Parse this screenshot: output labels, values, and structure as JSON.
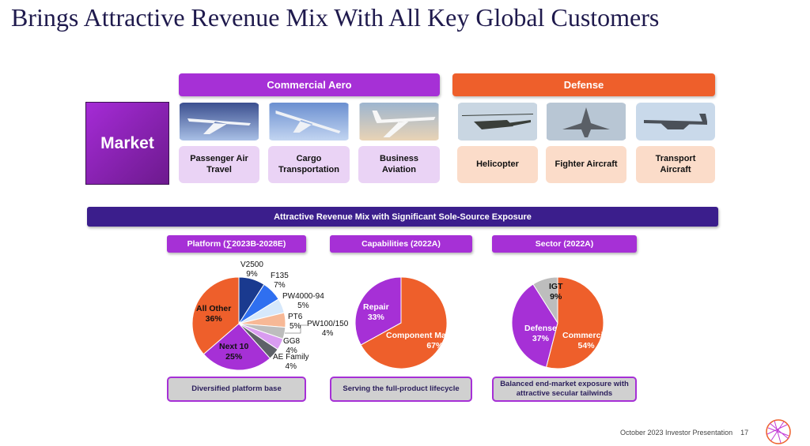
{
  "title": "Brings Attractive Revenue Mix With All Key Global Customers",
  "market_label": "Market",
  "commercial": {
    "header": "Commercial Aero",
    "color": "#a630d6",
    "items": [
      "Passenger Air Travel",
      "Cargo Transportation",
      "Business Aviation"
    ]
  },
  "defense": {
    "header": "Defense",
    "color": "#ee5f2b",
    "items": [
      "Helicopter",
      "Fighter Aircraft",
      "Transport Aircraft"
    ]
  },
  "banner": "Attractive Revenue Mix with Significant Sole-Source Exposure",
  "chart_data": [
    {
      "type": "pie",
      "title": "Platform (∑2023B-2028E)",
      "note": "Diversified platform base",
      "slices": [
        {
          "label": "V2500",
          "value": 9,
          "color": "#1a3a8f"
        },
        {
          "label": "F135",
          "value": 7,
          "color": "#2f6ff0"
        },
        {
          "label": "PW4000-94",
          "value": 5,
          "color": "#d6e8fb"
        },
        {
          "label": "PT6",
          "value": 5,
          "color": "#f7b896"
        },
        {
          "label": "PW100/150",
          "value": 4,
          "color": "#bdbdbd"
        },
        {
          "label": "GG8",
          "value": 4,
          "color": "#d99cf0"
        },
        {
          "label": "AE Family",
          "value": 4,
          "color": "#5e6168"
        },
        {
          "label": "Next 10",
          "value": 25,
          "color": "#a630d6"
        },
        {
          "label": "All Other",
          "value": 36,
          "color": "#ee5f2b"
        }
      ]
    },
    {
      "type": "pie",
      "title": "Capabilities (2022A)",
      "note": "Serving the full-product lifecycle",
      "slices": [
        {
          "label": "Component Manufacture",
          "value": 67,
          "color": "#ee5f2b"
        },
        {
          "label": "Repair",
          "value": 33,
          "color": "#a630d6"
        }
      ]
    },
    {
      "type": "pie",
      "title": "Sector (2022A)",
      "note": "Balanced end-market exposure with attractive secular tailwinds",
      "slices": [
        {
          "label": "Commercial",
          "value": 54,
          "color": "#ee5f2b"
        },
        {
          "label": "Defense",
          "value": 37,
          "color": "#a630d6"
        },
        {
          "label": "IGT",
          "value": 9,
          "color": "#bdbdbd"
        }
      ]
    }
  ],
  "footer": {
    "text": "October 2023 Investor Presentation",
    "page": "17"
  }
}
